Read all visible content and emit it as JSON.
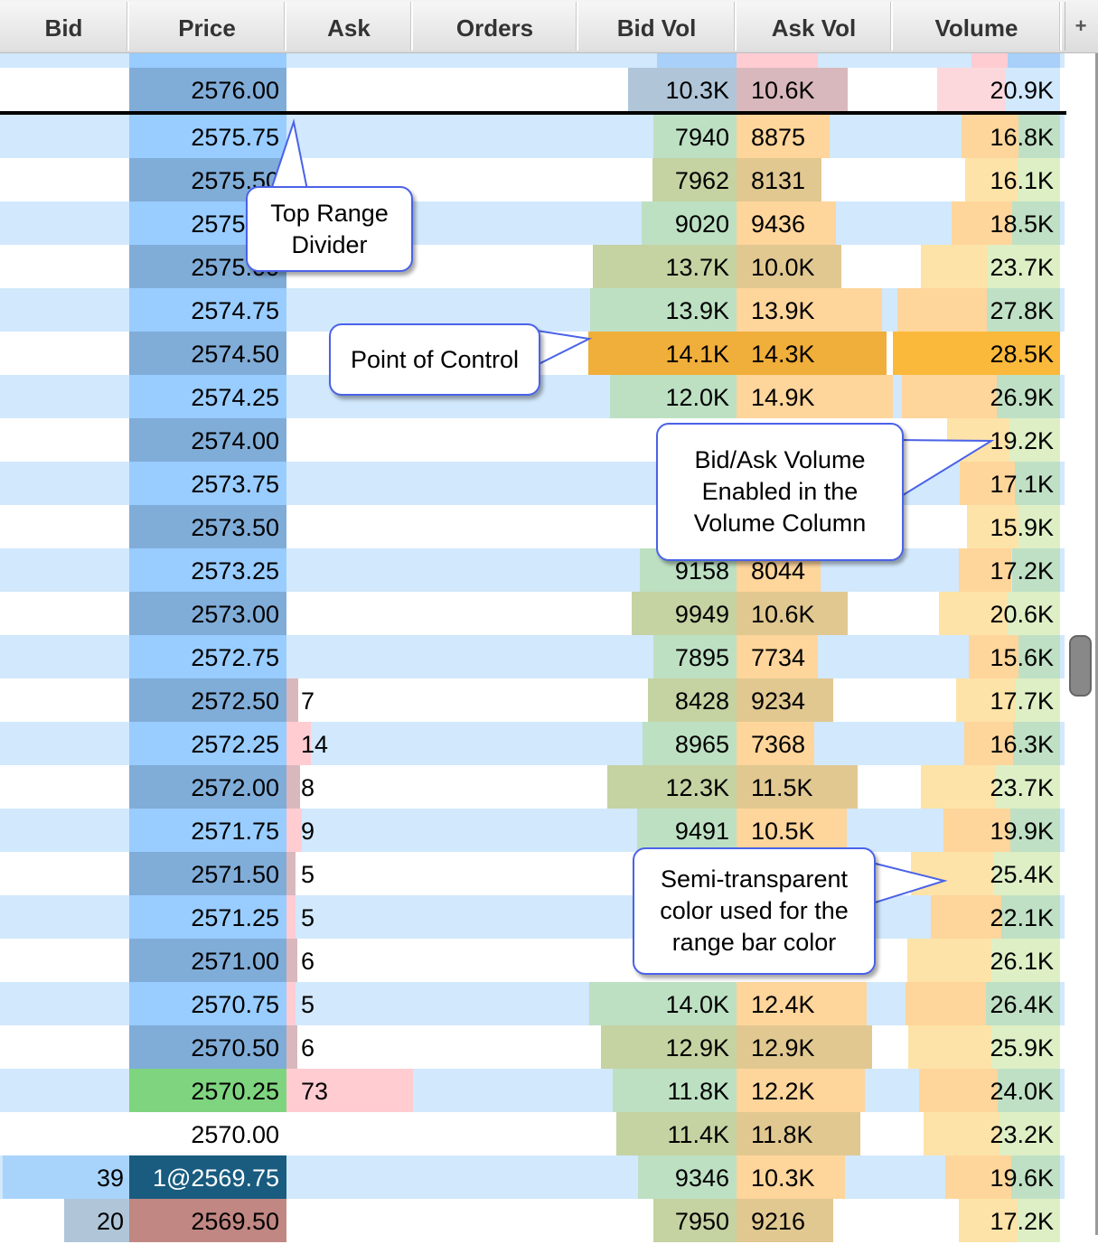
{
  "header": {
    "columns": [
      "Bid",
      "Price",
      "Ask",
      "Orders",
      "Bid Vol",
      "Ask Vol",
      "Volume"
    ],
    "add_label": "+"
  },
  "colors": {
    "row_alt": "#d2e8fc",
    "price_blue": "#99ccff",
    "price_dark": "#80acd8",
    "bidvol_green": "#bde0c3",
    "askvol_orange": "#fed59b",
    "bidvol_olive": "#c5d2a2",
    "askvol_tan": "#e1c891",
    "poc_orange": "#f0ae3a",
    "inside_bid": "#195c80",
    "last_price": "#7fd47f",
    "inside_ask_price": "#c08783"
  },
  "rows": [
    {
      "price": "2576.00",
      "bid": "",
      "ask": "",
      "bid_vol": "10.3K",
      "ask_vol": "10.6K",
      "volume": "20.9K",
      "zone": "above"
    },
    {
      "price": "2575.75",
      "bid": "",
      "ask": "",
      "bid_vol": "7940",
      "ask_vol": "8875",
      "volume": "16.8K"
    },
    {
      "price": "2575.50",
      "bid": "",
      "ask": "",
      "bid_vol": "7962",
      "ask_vol": "8131",
      "volume": "16.1K"
    },
    {
      "price": "2575.25",
      "bid": "",
      "ask": "",
      "bid_vol": "9020",
      "ask_vol": "9436",
      "volume": "18.5K"
    },
    {
      "price": "2575.00",
      "bid": "",
      "ask": "",
      "bid_vol": "13.7K",
      "ask_vol": "10.0K",
      "volume": "23.7K"
    },
    {
      "price": "2574.75",
      "bid": "",
      "ask": "",
      "bid_vol": "13.9K",
      "ask_vol": "13.9K",
      "volume": "27.8K"
    },
    {
      "price": "2574.50",
      "bid": "",
      "ask": "",
      "bid_vol": "14.1K",
      "ask_vol": "14.3K",
      "volume": "28.5K",
      "poc": true
    },
    {
      "price": "2574.25",
      "bid": "",
      "ask": "",
      "bid_vol": "12.0K",
      "ask_vol": "14.9K",
      "volume": "26.9K"
    },
    {
      "price": "2574.00",
      "bid": "",
      "ask": "",
      "bid_vol": "",
      "ask_vol": "",
      "volume": "19.2K"
    },
    {
      "price": "2573.75",
      "bid": "",
      "ask": "",
      "bid_vol": "",
      "ask_vol": "",
      "volume": "17.1K"
    },
    {
      "price": "2573.50",
      "bid": "",
      "ask": "",
      "bid_vol": "",
      "ask_vol": "",
      "volume": "15.9K"
    },
    {
      "price": "2573.25",
      "bid": "",
      "ask": "",
      "bid_vol": "9158",
      "ask_vol": "8044",
      "volume": "17.2K"
    },
    {
      "price": "2573.00",
      "bid": "",
      "ask": "",
      "bid_vol": "9949",
      "ask_vol": "10.6K",
      "volume": "20.6K"
    },
    {
      "price": "2572.75",
      "bid": "",
      "ask": "",
      "bid_vol": "7895",
      "ask_vol": "7734",
      "volume": "15.6K"
    },
    {
      "price": "2572.50",
      "bid": "",
      "ask": "7",
      "bid_vol": "8428",
      "ask_vol": "9234",
      "volume": "17.7K"
    },
    {
      "price": "2572.25",
      "bid": "",
      "ask": "14",
      "bid_vol": "8965",
      "ask_vol": "7368",
      "volume": "16.3K"
    },
    {
      "price": "2572.00",
      "bid": "",
      "ask": "8",
      "bid_vol": "12.3K",
      "ask_vol": "11.5K",
      "volume": "23.7K"
    },
    {
      "price": "2571.75",
      "bid": "",
      "ask": "9",
      "bid_vol": "9491",
      "ask_vol": "10.5K",
      "volume": "19.9K"
    },
    {
      "price": "2571.50",
      "bid": "",
      "ask": "5",
      "bid_vol": "",
      "ask_vol": "",
      "volume": "25.4K"
    },
    {
      "price": "2571.25",
      "bid": "",
      "ask": "5",
      "bid_vol": "",
      "ask_vol": "",
      "volume": "22.1K"
    },
    {
      "price": "2571.00",
      "bid": "",
      "ask": "6",
      "bid_vol": "",
      "ask_vol": "",
      "volume": "26.1K"
    },
    {
      "price": "2570.75",
      "bid": "",
      "ask": "5",
      "bid_vol": "14.0K",
      "ask_vol": "12.4K",
      "volume": "26.4K"
    },
    {
      "price": "2570.50",
      "bid": "",
      "ask": "6",
      "bid_vol": "12.9K",
      "ask_vol": "12.9K",
      "volume": "25.9K"
    },
    {
      "price": "2570.25",
      "bid": "",
      "ask": "73",
      "bid_vol": "11.8K",
      "ask_vol": "12.2K",
      "volume": "24.0K",
      "special": "last"
    },
    {
      "price": "2570.00",
      "bid": "",
      "ask": "",
      "bid_vol": "11.4K",
      "ask_vol": "11.8K",
      "volume": "23.2K",
      "special": "none"
    },
    {
      "price": "1@2569.75",
      "bid": "39",
      "ask": "",
      "bid_vol": "9346",
      "ask_vol": "10.3K",
      "volume": "19.6K",
      "special": "insidebid"
    },
    {
      "price": "2569.50",
      "bid": "20",
      "ask": "",
      "bid_vol": "7950",
      "ask_vol": "9216",
      "volume": "17.2K",
      "special": "bidlevel"
    }
  ],
  "callouts": {
    "top_range": "Top Range Divider",
    "poc": "Point of Control",
    "bid_ask_volume": "Bid/Ask Volume Enabled in the Volume Column",
    "semi_transparent": "Semi-transparent color used for the range bar color"
  }
}
